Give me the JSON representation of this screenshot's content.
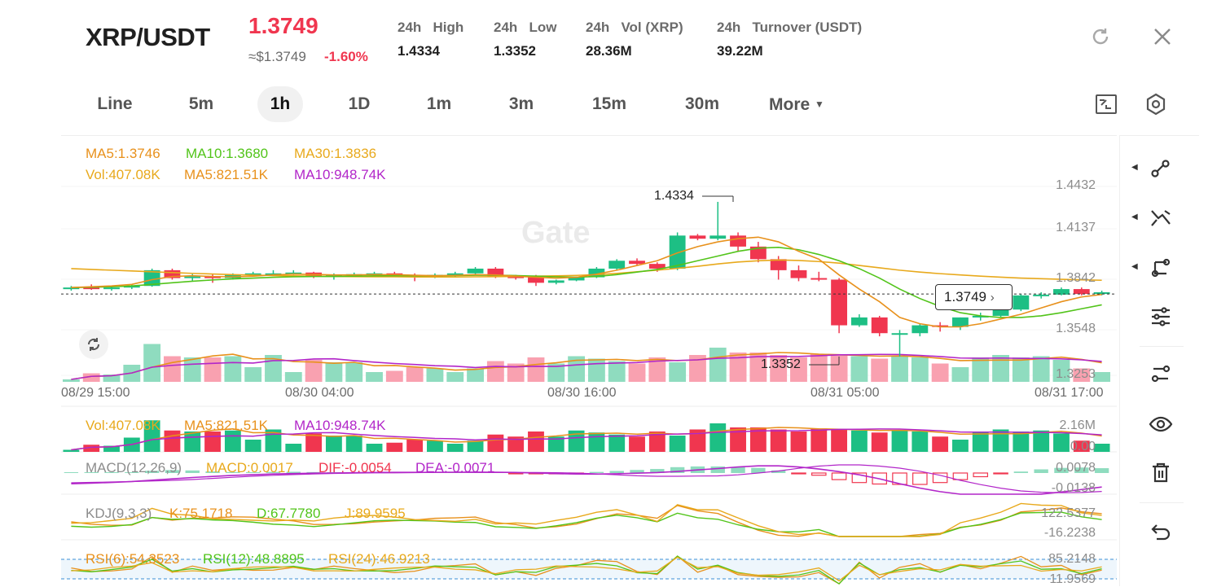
{
  "header": {
    "pair": "XRP/USDT",
    "price": "1.3749",
    "usd_price": "≈$1.3749",
    "change": "-1.60%",
    "stats": [
      {
        "label": "24h   High",
        "value": "1.4334"
      },
      {
        "label": "24h   Low",
        "value": "1.3352"
      },
      {
        "label": "24h   Vol (XRP)",
        "value": "28.36M"
      },
      {
        "label": "24h   Turnover (USDT)",
        "value": "39.22M"
      }
    ],
    "icons": [
      "refresh-icon",
      "close-icon"
    ]
  },
  "tabs": [
    {
      "label": "Line",
      "active": false
    },
    {
      "label": "5m",
      "active": false
    },
    {
      "label": "1h",
      "active": true
    },
    {
      "label": "1D",
      "active": false
    },
    {
      "label": "1m",
      "active": false
    },
    {
      "label": "3m",
      "active": false
    },
    {
      "label": "15m",
      "active": false
    },
    {
      "label": "30m",
      "active": false
    },
    {
      "label": "More",
      "active": false
    }
  ],
  "tab_icons": [
    "chart-style-icon",
    "settings-icon"
  ],
  "legend": {
    "ma5": "MA5:1.3746",
    "ma10": "MA10:1.3680",
    "ma30": "MA30:1.3836",
    "vol": "Vol:407.08K",
    "vol_ma5": "MA5:821.51K",
    "vol_ma10": "MA10:948.74K",
    "vol2": "Vol:407.08K",
    "vol2_ma5": "MA5:821.51K",
    "vol2_ma10": "MA10:948.74K",
    "macd_title": "MACD(12,26,9)",
    "macd": "MACD:0.0017",
    "dif": "DIF:-0.0054",
    "dea": "DEA:-0.0071",
    "kdj_title": "KDJ(9,3,3)",
    "k": "K:75.1718",
    "d": "D:67.7780",
    "j": "J:89.9595",
    "rsi6": "RSI(6):54.3523",
    "rsi12": "RSI(12):48.8895",
    "rsi24": "RSI(24):46.9213"
  },
  "colors": {
    "up": "#1dbf84",
    "down": "#f0364f",
    "ma5": "#e8911c",
    "ma10": "#52c41a",
    "ma30": "#e8a91c",
    "ma10vol": "#b226c9"
  },
  "y_axis": [
    "1.4432",
    "1.4137",
    "1.3842",
    "1.3548",
    "1.3253"
  ],
  "x_axis": [
    "08/29 15:00",
    "08/30 04:00",
    "08/30 16:00",
    "08/31 05:00",
    "08/31 17:00"
  ],
  "callouts": {
    "high": "1.4334",
    "low": "1.3352",
    "current": "1.3749"
  },
  "watermark": "Gate",
  "vol_axis": [
    "2.16M",
    "0.00"
  ],
  "macd_axis": [
    "0.0078",
    "-0.0138"
  ],
  "kdj_axis": [
    "122.5377",
    "-16.2238"
  ],
  "rsi_axis": [
    "85.2148",
    "11.9569"
  ],
  "chart_data": {
    "type": "candlestick",
    "ylim": [
      1.3253,
      1.4432
    ],
    "candles": [
      [
        1.378,
        1.38,
        1.377,
        1.379
      ],
      [
        1.379,
        1.381,
        1.3775,
        1.3785
      ],
      [
        1.3785,
        1.38,
        1.377,
        1.379
      ],
      [
        1.379,
        1.381,
        1.378,
        1.38
      ],
      [
        1.38,
        1.391,
        1.3795,
        1.39
      ],
      [
        1.39,
        1.391,
        1.384,
        1.385
      ],
      [
        1.385,
        1.3875,
        1.383,
        1.386
      ],
      [
        1.386,
        1.3875,
        1.382,
        1.385
      ],
      [
        1.385,
        1.388,
        1.384,
        1.387
      ],
      [
        1.387,
        1.389,
        1.386,
        1.388
      ],
      [
        1.388,
        1.39,
        1.387,
        1.388
      ],
      [
        1.388,
        1.39,
        1.387,
        1.3885
      ],
      [
        1.3885,
        1.389,
        1.385,
        1.386
      ],
      [
        1.386,
        1.388,
        1.384,
        1.387
      ],
      [
        1.387,
        1.3885,
        1.386,
        1.3875
      ],
      [
        1.3875,
        1.389,
        1.3865,
        1.388
      ],
      [
        1.388,
        1.389,
        1.386,
        1.387
      ],
      [
        1.387,
        1.388,
        1.383,
        1.386
      ],
      [
        1.386,
        1.388,
        1.385,
        1.387
      ],
      [
        1.387,
        1.389,
        1.386,
        1.388
      ],
      [
        1.388,
        1.392,
        1.387,
        1.391
      ],
      [
        1.391,
        1.392,
        1.385,
        1.386
      ],
      [
        1.386,
        1.387,
        1.384,
        1.3855
      ],
      [
        1.3855,
        1.387,
        1.38,
        1.382
      ],
      [
        1.382,
        1.384,
        1.381,
        1.3835
      ],
      [
        1.3835,
        1.386,
        1.383,
        1.3855
      ],
      [
        1.3855,
        1.392,
        1.385,
        1.391
      ],
      [
        1.391,
        1.397,
        1.39,
        1.396
      ],
      [
        1.396,
        1.3975,
        1.393,
        1.394
      ],
      [
        1.394,
        1.395,
        1.389,
        1.391
      ],
      [
        1.391,
        1.414,
        1.39,
        1.412
      ],
      [
        1.412,
        1.413,
        1.409,
        1.41
      ],
      [
        1.41,
        1.4334,
        1.409,
        1.412
      ],
      [
        1.412,
        1.414,
        1.402,
        1.405
      ],
      [
        1.405,
        1.408,
        1.395,
        1.397
      ],
      [
        1.397,
        1.399,
        1.384,
        1.39
      ],
      [
        1.39,
        1.393,
        1.383,
        1.385
      ],
      [
        1.385,
        1.389,
        1.383,
        1.384
      ],
      [
        1.384,
        1.385,
        1.35,
        1.355
      ],
      [
        1.355,
        1.362,
        1.354,
        1.36
      ],
      [
        1.36,
        1.361,
        1.348,
        1.35
      ],
      [
        1.35,
        1.352,
        1.3352,
        1.35
      ],
      [
        1.35,
        1.356,
        1.348,
        1.355
      ],
      [
        1.355,
        1.357,
        1.351,
        1.354
      ],
      [
        1.354,
        1.36,
        1.352,
        1.36
      ],
      [
        1.36,
        1.363,
        1.358,
        1.361
      ],
      [
        1.361,
        1.366,
        1.36,
        1.365
      ],
      [
        1.365,
        1.375,
        1.364,
        1.374
      ],
      [
        1.374,
        1.376,
        1.372,
        1.3745
      ],
      [
        1.3745,
        1.379,
        1.374,
        1.378
      ],
      [
        1.378,
        1.379,
        1.374,
        1.3749
      ],
      [
        1.3749,
        1.377,
        1.374,
        1.376
      ]
    ],
    "volume": [
      0.1,
      0.35,
      0.3,
      0.7,
      1.55,
      1.05,
      1.0,
      1.0,
      1.05,
      0.6,
      1.1,
      0.4,
      0.9,
      0.8,
      0.8,
      0.4,
      0.45,
      0.6,
      0.55,
      0.4,
      0.55,
      0.85,
      0.75,
      1.0,
      0.75,
      1.05,
      0.95,
      0.85,
      0.75,
      1.0,
      0.8,
      1.1,
      1.4,
      1.2,
      1.2,
      1.1,
      1.0,
      1.15,
      1.1,
      1.05,
      0.95,
      1.05,
      1.0,
      0.75,
      0.6,
      1.0,
      1.1,
      1.0,
      1.05,
      0.9,
      0.55,
      0.4
    ],
    "ma5": [
      1.379,
      1.3795,
      1.38,
      1.381,
      1.384,
      1.386,
      1.3865,
      1.386,
      1.3858,
      1.3862,
      1.387,
      1.3875,
      1.3873,
      1.387,
      1.387,
      1.3872,
      1.3872,
      1.3868,
      1.3865,
      1.3867,
      1.3872,
      1.387,
      1.3862,
      1.3855,
      1.385,
      1.3855,
      1.3875,
      1.39,
      1.393,
      1.396,
      1.401,
      1.405,
      1.408,
      1.41,
      1.411,
      1.408,
      1.402,
      1.397,
      1.387,
      1.378,
      1.37,
      1.36,
      1.356,
      1.354,
      1.354,
      1.356,
      1.359,
      1.362,
      1.366,
      1.37,
      1.373,
      1.3746
    ],
    "ma10": [
      1.379,
      1.3792,
      1.3795,
      1.38,
      1.381,
      1.382,
      1.383,
      1.3838,
      1.3845,
      1.385,
      1.3855,
      1.3858,
      1.386,
      1.386,
      1.3862,
      1.3864,
      1.3865,
      1.3865,
      1.3865,
      1.3866,
      1.3868,
      1.3868,
      1.3866,
      1.3862,
      1.3858,
      1.3856,
      1.386,
      1.3872,
      1.3888,
      1.3905,
      1.393,
      1.396,
      1.399,
      1.402,
      1.404,
      1.4045,
      1.403,
      1.4,
      1.396,
      1.391,
      1.385,
      1.378,
      1.372,
      1.367,
      1.363,
      1.361,
      1.36,
      1.36,
      1.361,
      1.363,
      1.3655,
      1.368
    ],
    "ma30": [
      1.391,
      1.3905,
      1.39,
      1.3895,
      1.389,
      1.3885,
      1.388,
      1.3876,
      1.3872,
      1.3869,
      1.3866,
      1.3864,
      1.3862,
      1.386,
      1.3859,
      1.3858,
      1.3858,
      1.3857,
      1.3857,
      1.3857,
      1.3858,
      1.3859,
      1.386,
      1.3862,
      1.3864,
      1.3867,
      1.3872,
      1.388,
      1.389,
      1.39,
      1.3912,
      1.3925,
      1.394,
      1.3952,
      1.396,
      1.3965,
      1.3962,
      1.3955,
      1.3945,
      1.393,
      1.3915,
      1.39,
      1.3888,
      1.3878,
      1.387,
      1.3862,
      1.3856,
      1.385,
      1.3846,
      1.3842,
      1.3839,
      1.3836
    ]
  }
}
